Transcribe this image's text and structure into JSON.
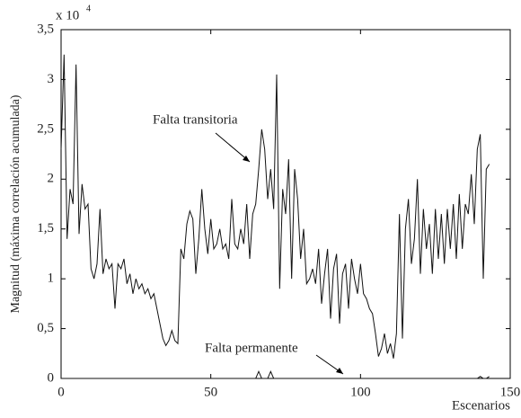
{
  "chart_data": {
    "type": "line",
    "x_label": "Escenarios",
    "y_label": "Magnitud (máxima correlación acumulada)",
    "multiplier": "x 10",
    "multiplier_exp": "4",
    "xlim": [
      0,
      150
    ],
    "xticks": [
      0,
      50,
      100,
      150
    ],
    "ylim": [
      0,
      3.5
    ],
    "yticks": [
      0,
      {
        "value": 0.5,
        "label": "0,5"
      },
      1,
      {
        "value": 1.5,
        "label": "1,5"
      },
      2,
      {
        "value": 2.5,
        "label": "2,5"
      },
      3,
      {
        "value": 3.5,
        "label": "3,5"
      }
    ],
    "x": [
      0,
      1,
      2,
      3,
      4,
      5,
      6,
      7,
      8,
      9,
      10,
      11,
      12,
      13,
      14,
      15,
      16,
      17,
      18,
      19,
      20,
      21,
      22,
      23,
      24,
      25,
      26,
      27,
      28,
      29,
      30,
      31,
      32,
      33,
      34,
      35,
      36,
      37,
      38,
      39,
      40,
      41,
      42,
      43,
      44,
      45,
      46,
      47,
      48,
      49,
      50,
      51,
      52,
      53,
      54,
      55,
      56,
      57,
      58,
      59,
      60,
      61,
      62,
      63,
      64,
      65,
      66,
      67,
      68,
      69,
      70,
      71,
      72,
      73,
      74,
      75,
      76,
      77,
      78,
      79,
      80,
      81,
      82,
      83,
      84,
      85,
      86,
      87,
      88,
      89,
      90,
      91,
      92,
      93,
      94,
      95,
      96,
      97,
      98,
      99,
      100,
      101,
      102,
      103,
      104,
      105,
      106,
      107,
      108,
      109,
      110,
      111,
      112,
      113,
      114,
      115,
      116,
      117,
      118,
      119,
      120,
      121,
      122,
      123,
      124,
      125,
      126,
      127,
      128,
      129,
      130,
      131,
      132,
      133,
      134,
      135,
      136,
      137,
      138,
      139,
      140,
      141,
      142,
      143
    ],
    "series": [
      {
        "name": "Falta transitoria",
        "color": "#111111",
        "values": [
          2.3,
          3.25,
          1.4,
          1.9,
          1.75,
          3.15,
          1.45,
          1.95,
          1.7,
          1.75,
          1.1,
          1.0,
          1.15,
          1.7,
          1.05,
          1.2,
          1.1,
          1.15,
          0.7,
          1.15,
          1.1,
          1.2,
          0.95,
          1.05,
          0.85,
          1.0,
          0.9,
          0.95,
          0.85,
          0.9,
          0.8,
          0.85,
          0.7,
          0.55,
          0.4,
          0.33,
          0.38,
          0.48,
          0.38,
          0.35,
          1.3,
          1.2,
          1.55,
          1.68,
          1.6,
          1.05,
          1.4,
          1.9,
          1.5,
          1.25,
          1.6,
          1.3,
          1.35,
          1.5,
          1.3,
          1.35,
          1.2,
          1.8,
          1.35,
          1.3,
          1.5,
          1.35,
          1.75,
          1.2,
          1.65,
          1.75,
          2.1,
          2.5,
          2.3,
          1.8,
          2.1,
          1.7,
          3.05,
          0.9,
          1.9,
          1.65,
          2.2,
          1.0,
          2.1,
          1.8,
          1.2,
          1.5,
          0.95,
          1.0,
          1.1,
          0.95,
          1.3,
          0.75,
          1.05,
          1.3,
          0.6,
          1.1,
          1.25,
          0.55,
          1.05,
          1.15,
          0.7,
          1.2,
          1.0,
          0.85,
          1.15,
          0.85,
          0.8,
          0.7,
          0.65,
          0.45,
          0.22,
          0.3,
          0.45,
          0.25,
          0.35,
          0.2,
          0.45,
          1.65,
          0.4,
          1.5,
          1.8,
          1.15,
          1.4,
          2.0,
          1.05,
          1.7,
          1.3,
          1.55,
          1.05,
          1.7,
          1.2,
          1.65,
          1.15,
          1.7,
          1.3,
          1.75,
          1.2,
          1.85,
          1.3,
          1.75,
          1.65,
          2.05,
          1.55,
          2.3,
          2.45,
          1.0,
          2.1,
          2.15
        ]
      },
      {
        "name": "Falta permanente",
        "color": "#111111",
        "values": [
          0,
          0,
          0,
          0,
          0,
          0,
          0,
          0,
          0,
          0,
          0,
          0,
          0,
          0,
          0,
          0,
          0,
          0,
          0,
          0,
          0,
          0,
          0,
          0,
          0,
          0,
          0,
          0,
          0,
          0,
          0,
          0,
          0,
          0,
          0,
          0,
          0,
          0,
          0,
          0,
          0,
          0,
          0,
          0,
          0,
          0,
          0,
          0,
          0,
          0,
          0,
          0,
          0,
          0,
          0,
          0,
          0,
          0,
          0,
          0,
          0,
          0,
          0,
          0,
          0,
          0,
          0.07,
          0,
          0,
          0,
          0.07,
          0,
          0,
          0,
          0,
          0,
          0,
          0,
          0,
          0,
          0,
          0,
          0,
          0,
          0,
          0,
          0,
          0,
          0,
          0,
          0,
          0,
          0,
          0,
          0,
          0,
          0,
          0,
          0,
          0,
          0,
          0,
          0,
          0,
          0,
          0,
          0,
          0,
          0,
          0,
          0,
          0,
          0,
          0,
          0,
          0,
          0,
          0,
          0,
          0,
          0,
          0,
          0,
          0,
          0,
          0,
          0,
          0,
          0,
          0,
          0,
          0,
          0,
          0,
          0,
          0,
          0,
          0,
          0,
          0,
          0.02,
          0,
          0,
          0.02
        ]
      }
    ]
  }
}
